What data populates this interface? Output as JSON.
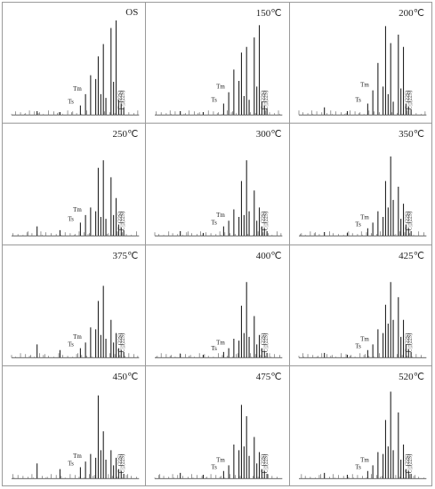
{
  "figure": {
    "panels": [
      {
        "label": "OS",
        "tm_label": "Tm",
        "ts_label": "Ts",
        "c29_label": "C₂₉(22S)",
        "c30_label": "C₃₀(22S)"
      },
      {
        "label": "150℃",
        "tm_label": "Tm",
        "ts_label": "Ts",
        "c29_label": "C₂₉(22S)",
        "c30_label": "C₃₀(22S)"
      },
      {
        "label": "200℃",
        "tm_label": "Tm",
        "ts_label": "Ts",
        "c29_label": "C₂₉(22S)",
        "c30_label": "C₃₀(22S)"
      },
      {
        "label": "250℃",
        "tm_label": "Tm",
        "ts_label": "Ts",
        "c29_label": "C₂₉(22S)",
        "c30_label": "C₃₀(22S)"
      },
      {
        "label": "300℃",
        "tm_label": "Tm",
        "ts_label": "Ts",
        "c29_label": "C₂₉(22S)",
        "c30_label": "C₃₀(22S)"
      },
      {
        "label": "350℃",
        "tm_label": "Tm",
        "ts_label": "Ts",
        "c29_label": "C₂₉(22S)",
        "c30_label": "C₃₀(22S)"
      },
      {
        "label": "375℃",
        "tm_label": "Tm",
        "ts_label": "Ts",
        "c29_label": "C₂₉(22S)",
        "c30_label": "C₃₀(22S)"
      },
      {
        "label": "400℃",
        "tm_label": "Tm",
        "ts_label": "Ts",
        "c29_label": "C₂₉(22S)",
        "c30_label": "C₃₀(22S)"
      },
      {
        "label": "425℃",
        "tm_label": "Tm",
        "ts_label": "Ts",
        "c29_label": "C₂₉(22S)",
        "c30_label": "C₃₀(22S)"
      },
      {
        "label": "450℃",
        "tm_label": "Tm",
        "ts_label": "Ts",
        "c29_label": "C₂₉(22S)",
        "c30_label": "C₃₀(22S)"
      },
      {
        "label": "475℃",
        "tm_label": "Tm",
        "ts_label": "Ts",
        "c29_label": "C₂₉(22S)",
        "c30_label": "C₃₀(22S)"
      },
      {
        "label": "520℃",
        "tm_label": "Tm",
        "ts_label": "Ts",
        "c29_label": "C₂₉(22S)",
        "c30_label": "C₃₀(22S)"
      }
    ]
  },
  "chart_data": [
    {
      "type": "line",
      "title": "OS",
      "ylim": [
        0,
        100
      ],
      "x": [
        0.2,
        0.38,
        0.54,
        0.58,
        0.62,
        0.66,
        0.68,
        0.7,
        0.72,
        0.74,
        0.78,
        0.8,
        0.82,
        0.84,
        0.86,
        0.88
      ],
      "values": [
        4,
        3,
        10,
        22,
        42,
        38,
        62,
        22,
        75,
        18,
        92,
        35,
        100,
        16,
        12,
        8
      ]
    },
    {
      "type": "line",
      "title": "150℃",
      "ylim": [
        0,
        100
      ],
      "x": [
        0.2,
        0.38,
        0.54,
        0.58,
        0.62,
        0.66,
        0.68,
        0.7,
        0.72,
        0.74,
        0.78,
        0.8,
        0.82,
        0.84,
        0.86,
        0.88
      ],
      "values": [
        4,
        3,
        12,
        24,
        48,
        36,
        66,
        20,
        72,
        16,
        82,
        30,
        95,
        14,
        10,
        7
      ]
    },
    {
      "type": "line",
      "title": "200℃",
      "ylim": [
        0,
        100
      ],
      "x": [
        0.2,
        0.38,
        0.54,
        0.58,
        0.62,
        0.66,
        0.68,
        0.7,
        0.72,
        0.74,
        0.78,
        0.8,
        0.82,
        0.84,
        0.86,
        0.88
      ],
      "values": [
        8,
        4,
        12,
        26,
        55,
        30,
        94,
        22,
        76,
        14,
        85,
        28,
        72,
        12,
        9,
        6
      ]
    },
    {
      "type": "line",
      "title": "250℃",
      "ylim": [
        0,
        100
      ],
      "x": [
        0.2,
        0.38,
        0.54,
        0.58,
        0.62,
        0.66,
        0.68,
        0.7,
        0.72,
        0.74,
        0.78,
        0.8,
        0.82,
        0.84,
        0.86,
        0.88
      ],
      "values": [
        10,
        6,
        14,
        22,
        30,
        26,
        72,
        20,
        80,
        18,
        62,
        22,
        40,
        12,
        9,
        6
      ]
    },
    {
      "type": "line",
      "title": "300℃",
      "ylim": [
        0,
        100
      ],
      "x": [
        0.2,
        0.38,
        0.54,
        0.58,
        0.62,
        0.66,
        0.68,
        0.7,
        0.72,
        0.74,
        0.78,
        0.8,
        0.82,
        0.84,
        0.86,
        0.88
      ],
      "values": [
        5,
        3,
        10,
        16,
        28,
        20,
        58,
        22,
        80,
        26,
        48,
        16,
        30,
        10,
        8,
        5
      ]
    },
    {
      "type": "line",
      "title": "350℃",
      "ylim": [
        0,
        100
      ],
      "x": [
        0.2,
        0.38,
        0.54,
        0.58,
        0.62,
        0.66,
        0.68,
        0.7,
        0.72,
        0.74,
        0.78,
        0.8,
        0.82,
        0.84,
        0.86,
        0.88
      ],
      "values": [
        4,
        3,
        8,
        14,
        26,
        20,
        58,
        30,
        84,
        38,
        52,
        18,
        34,
        12,
        8,
        5
      ]
    },
    {
      "type": "line",
      "title": "375℃",
      "ylim": [
        0,
        100
      ],
      "x": [
        0.2,
        0.38,
        0.54,
        0.58,
        0.62,
        0.66,
        0.68,
        0.7,
        0.72,
        0.74,
        0.78,
        0.8,
        0.82,
        0.84,
        0.86,
        0.88
      ],
      "values": [
        14,
        8,
        10,
        16,
        32,
        30,
        60,
        24,
        76,
        20,
        40,
        16,
        26,
        10,
        8,
        6
      ]
    },
    {
      "type": "line",
      "title": "400℃",
      "ylim": [
        0,
        100
      ],
      "x": [
        0.2,
        0.38,
        0.54,
        0.58,
        0.62,
        0.66,
        0.68,
        0.7,
        0.72,
        0.74,
        0.78,
        0.8,
        0.82,
        0.84,
        0.86,
        0.88
      ],
      "values": [
        4,
        3,
        6,
        10,
        20,
        18,
        55,
        26,
        80,
        22,
        44,
        14,
        24,
        10,
        7,
        5
      ]
    },
    {
      "type": "line",
      "title": "425℃",
      "ylim": [
        0,
        100
      ],
      "x": [
        0.2,
        0.38,
        0.54,
        0.58,
        0.62,
        0.66,
        0.68,
        0.7,
        0.72,
        0.74,
        0.78,
        0.8,
        0.82,
        0.84,
        0.86,
        0.88
      ],
      "values": [
        5,
        3,
        8,
        14,
        30,
        26,
        56,
        36,
        80,
        40,
        64,
        22,
        40,
        14,
        9,
        6
      ]
    },
    {
      "type": "line",
      "title": "450℃",
      "ylim": [
        0,
        100
      ],
      "x": [
        0.2,
        0.38,
        0.54,
        0.58,
        0.62,
        0.66,
        0.68,
        0.7,
        0.72,
        0.74,
        0.78,
        0.8,
        0.82,
        0.84,
        0.86,
        0.88
      ],
      "values": [
        16,
        10,
        12,
        18,
        26,
        22,
        88,
        30,
        50,
        20,
        30,
        14,
        22,
        10,
        8,
        5
      ]
    },
    {
      "type": "line",
      "title": "475℃",
      "ylim": [
        0,
        100
      ],
      "x": [
        0.2,
        0.38,
        0.54,
        0.58,
        0.62,
        0.66,
        0.68,
        0.7,
        0.72,
        0.74,
        0.78,
        0.8,
        0.82,
        0.84,
        0.86,
        0.88
      ],
      "values": [
        6,
        4,
        8,
        14,
        36,
        30,
        78,
        34,
        66,
        24,
        44,
        16,
        28,
        10,
        8,
        5
      ]
    },
    {
      "type": "line",
      "title": "520℃",
      "ylim": [
        0,
        100
      ],
      "x": [
        0.2,
        0.38,
        0.54,
        0.58,
        0.62,
        0.66,
        0.68,
        0.7,
        0.72,
        0.74,
        0.78,
        0.8,
        0.82,
        0.84,
        0.86,
        0.88
      ],
      "values": [
        6,
        4,
        8,
        14,
        28,
        26,
        62,
        34,
        92,
        30,
        70,
        20,
        36,
        10,
        8,
        5
      ]
    }
  ]
}
